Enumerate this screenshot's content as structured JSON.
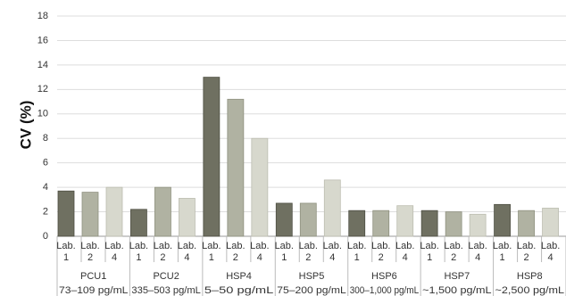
{
  "chart_data": {
    "type": "bar",
    "ylabel": "CV (%)",
    "xlabel": "",
    "ylim": [
      0,
      18
    ],
    "yticks": [
      0,
      2,
      4,
      6,
      8,
      10,
      12,
      14,
      16,
      18
    ],
    "grid": true,
    "labs": [
      {
        "line1": "Lab.",
        "line2": "1"
      },
      {
        "line1": "Lab.",
        "line2": "2"
      },
      {
        "line1": "Lab.",
        "line2": "4"
      }
    ],
    "groups": [
      {
        "name": "PCU1",
        "range": "73–109 pg/mL"
      },
      {
        "name": "PCU2",
        "range": "335–503 pg/mL"
      },
      {
        "name": "HSP4",
        "range": "5–50 pg/mL"
      },
      {
        "name": "HSP5",
        "range": "75–200 pg/mL"
      },
      {
        "name": "HSP6",
        "range": "300–1,000 pg/mL"
      },
      {
        "name": "HSP7",
        "range": "~1,500 pg/mL"
      },
      {
        "name": "HSP8",
        "range": "~2,500 pg/mL"
      }
    ],
    "series": [
      {
        "values": [
          3.7,
          2.2,
          13.0,
          2.7,
          2.1,
          2.1,
          2.6
        ]
      },
      {
        "values": [
          3.6,
          4.0,
          11.2,
          2.7,
          2.1,
          2.0,
          2.1
        ]
      },
      {
        "values": [
          4.0,
          3.1,
          8.0,
          4.6,
          2.5,
          1.8,
          2.3
        ]
      }
    ],
    "colors": [
      "#6f7061",
      "#b0b2a2",
      "#d7d8cd"
    ],
    "bar_edge_colors": [
      "#4e4f43",
      "#8f917f",
      "#bcbdb0"
    ],
    "grid_color": "#dddddd",
    "separator_color": "#bbbbbb"
  }
}
